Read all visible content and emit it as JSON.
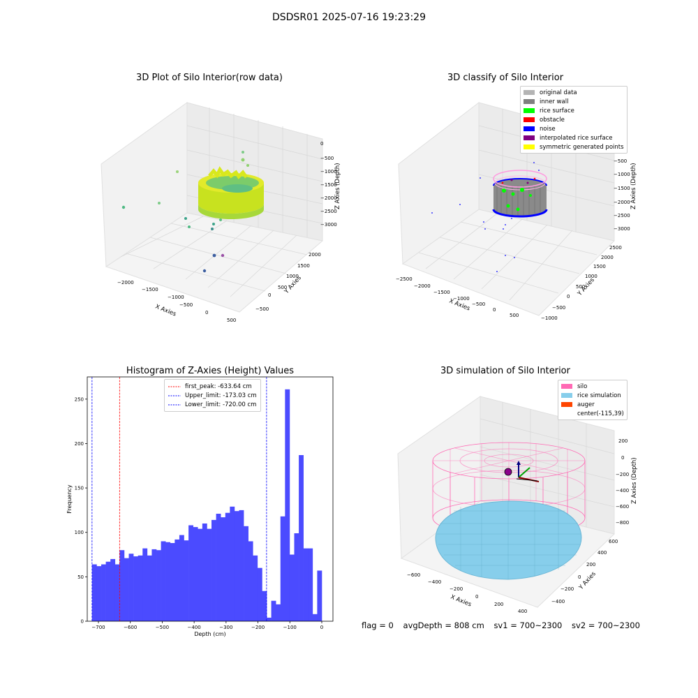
{
  "suptitle": "DSDSR01 2025-07-16 19:23:29",
  "footer": {
    "flag": "flag = 0",
    "avg": "avgDepth = 808 cm",
    "sv1": "sv1 = 700~2300",
    "sv2": "sv2 = 700~2300"
  },
  "colors": {
    "hist_bar": "#4b4bff",
    "first_peak": "#ff0000",
    "limit": "#0000ff",
    "silo": "#ff69b4",
    "rice_sim": "#87ceeb",
    "auger": "#ff4500",
    "original": "#b4b4b4",
    "inner_wall": "#808080",
    "rice_surface": "#00ff00",
    "obstacle": "#ff0000",
    "noise": "#0000ff",
    "interp_rice": "#800080",
    "symmetric": "#ffff00"
  },
  "chart_data": [
    {
      "type": "scatter",
      "title": "3D Plot of Silo Interior(row data)",
      "xlabel": "X Axies",
      "ylabel": "Y Axies",
      "zlabel": "Z Axies (Depth)",
      "xticks": [
        "−2000",
        "−1500",
        "−1000",
        "−500",
        "0",
        "500"
      ],
      "yticks": [
        "−500",
        "0",
        "500",
        "1000",
        "1500",
        "2000"
      ],
      "zticks": [
        "0",
        "−500",
        "−1000",
        "−1500",
        "−2000",
        "−2500",
        "−3000"
      ],
      "xlim": [
        -2200,
        600
      ],
      "ylim": [
        -700,
        2200
      ],
      "zlim": [
        -3300,
        100
      ]
    },
    {
      "type": "scatter",
      "title": "3D classify of Silo Interior",
      "xlabel": "X Axies",
      "ylabel": "Y Axies",
      "zlabel": "Z Axies (Depth)",
      "xticks": [
        "−2500",
        "−2000",
        "−1500",
        "−1000",
        "−500",
        "0",
        "500"
      ],
      "yticks": [
        "−1000",
        "−500",
        "0",
        "500",
        "1000",
        "1500",
        "2000",
        "2500"
      ],
      "zticks": [
        "0",
        "−500",
        "−1000",
        "−1500",
        "−2000",
        "−2500",
        "−3000"
      ],
      "legend": [
        "original data",
        "inner wall",
        "rice surface",
        "obstacle",
        "noise",
        "interpolated rice surface",
        "symmetric generated points"
      ]
    },
    {
      "type": "bar",
      "title": "Histogram of Z-Axies (Height) Values",
      "xlabel": "Depth (cm)",
      "ylabel": "Frequency",
      "xlim": [
        -735,
        35
      ],
      "ylim": [
        0,
        275
      ],
      "xticks": [
        -700,
        -600,
        -500,
        -400,
        -300,
        -200,
        -100,
        0
      ],
      "yticks": [
        0,
        50,
        100,
        150,
        200,
        250
      ],
      "bin_start": -720,
      "bin_width": 14.4,
      "values": [
        64,
        62,
        64,
        67,
        70,
        64,
        80,
        71,
        76,
        73,
        74,
        82,
        74,
        81,
        80,
        90,
        89,
        88,
        92,
        97,
        91,
        108,
        106,
        104,
        110,
        104,
        114,
        121,
        117,
        122,
        129,
        124,
        125,
        107,
        90,
        74,
        60,
        34,
        4,
        23,
        19,
        118,
        261,
        75,
        99,
        187,
        82,
        82,
        8,
        57
      ],
      "lines": [
        {
          "name": "first_peak: -633.64 cm",
          "x": -633.64
        },
        {
          "name": "Upper_limit: -173.03 cm",
          "x": -173.03
        },
        {
          "name": "Lower_limit: -720.00 cm",
          "x": -720.0
        }
      ]
    },
    {
      "type": "scatter",
      "title": "3D simulation of Silo Interior",
      "xlabel": "X Axies",
      "ylabel": "Y Axies",
      "zlabel": "Z Axies (Depth)",
      "xticks": [
        "−600",
        "−400",
        "−200",
        "0",
        "200",
        "400"
      ],
      "yticks": [
        "−400",
        "−200",
        "0",
        "200",
        "400",
        "600"
      ],
      "zticks": [
        "200",
        "0",
        "−200",
        "−400",
        "−600",
        "−800"
      ],
      "legend": [
        "silo",
        "rice simulation",
        "auger",
        "center(-115,39)"
      ]
    }
  ]
}
